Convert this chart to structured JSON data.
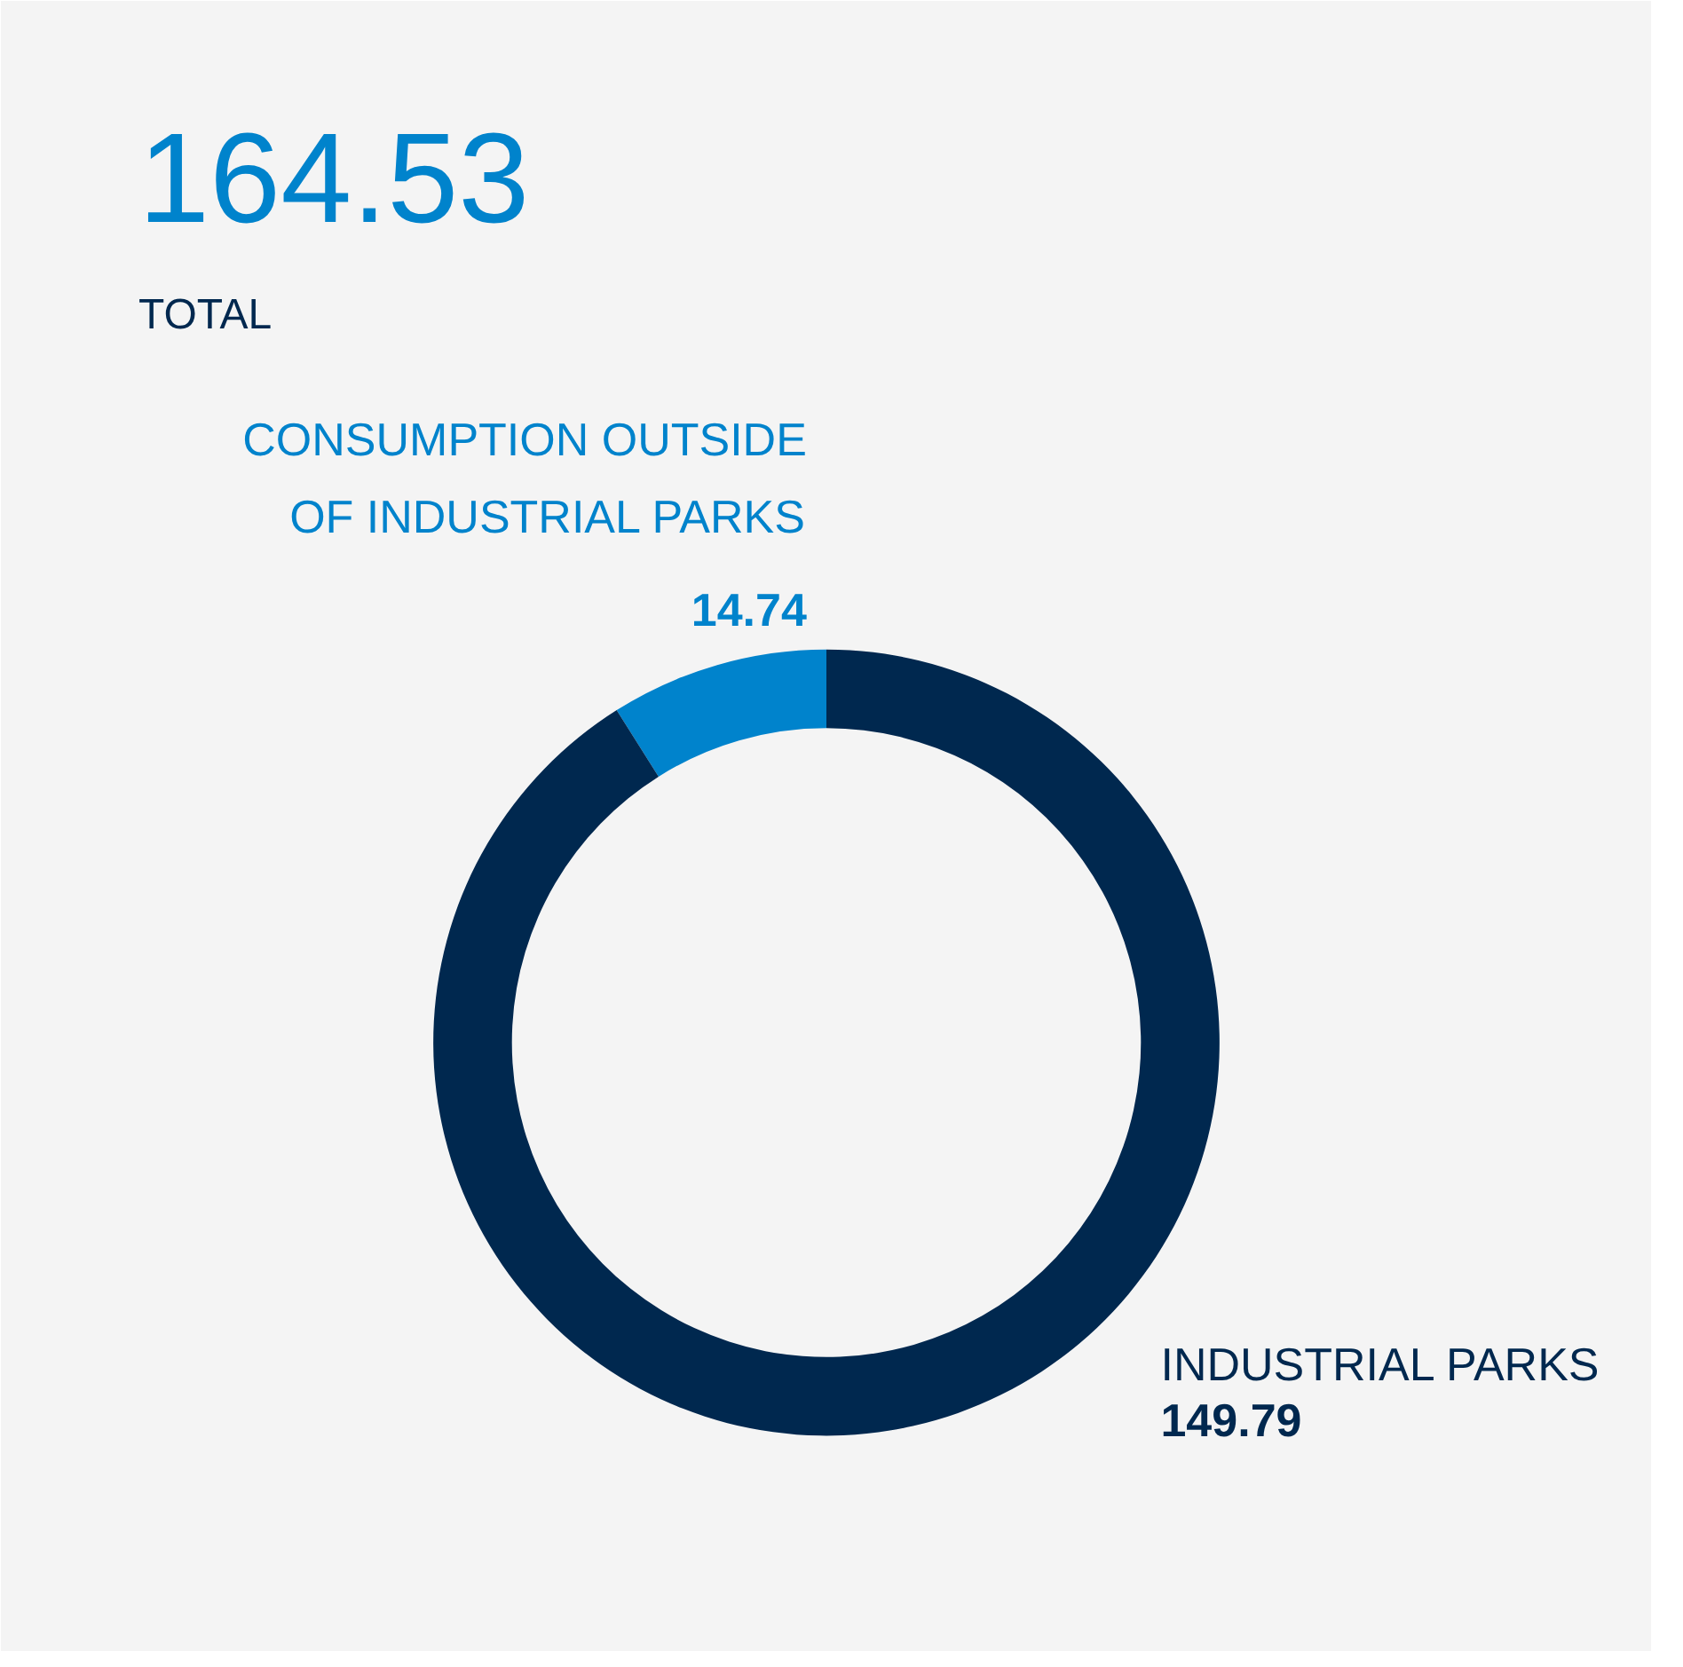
{
  "chart_data": {
    "type": "donut",
    "title": "164.53",
    "subtitle": "TOTAL",
    "categories": [
      "CONSUMPTION OUTSIDE OF INDUSTRIAL PARKS",
      "INDUSTRIAL PARKS"
    ],
    "values": [
      14.74,
      149.79
    ],
    "colors": [
      "#0083cc",
      "#00284f"
    ],
    "data_labels": true
  }
}
